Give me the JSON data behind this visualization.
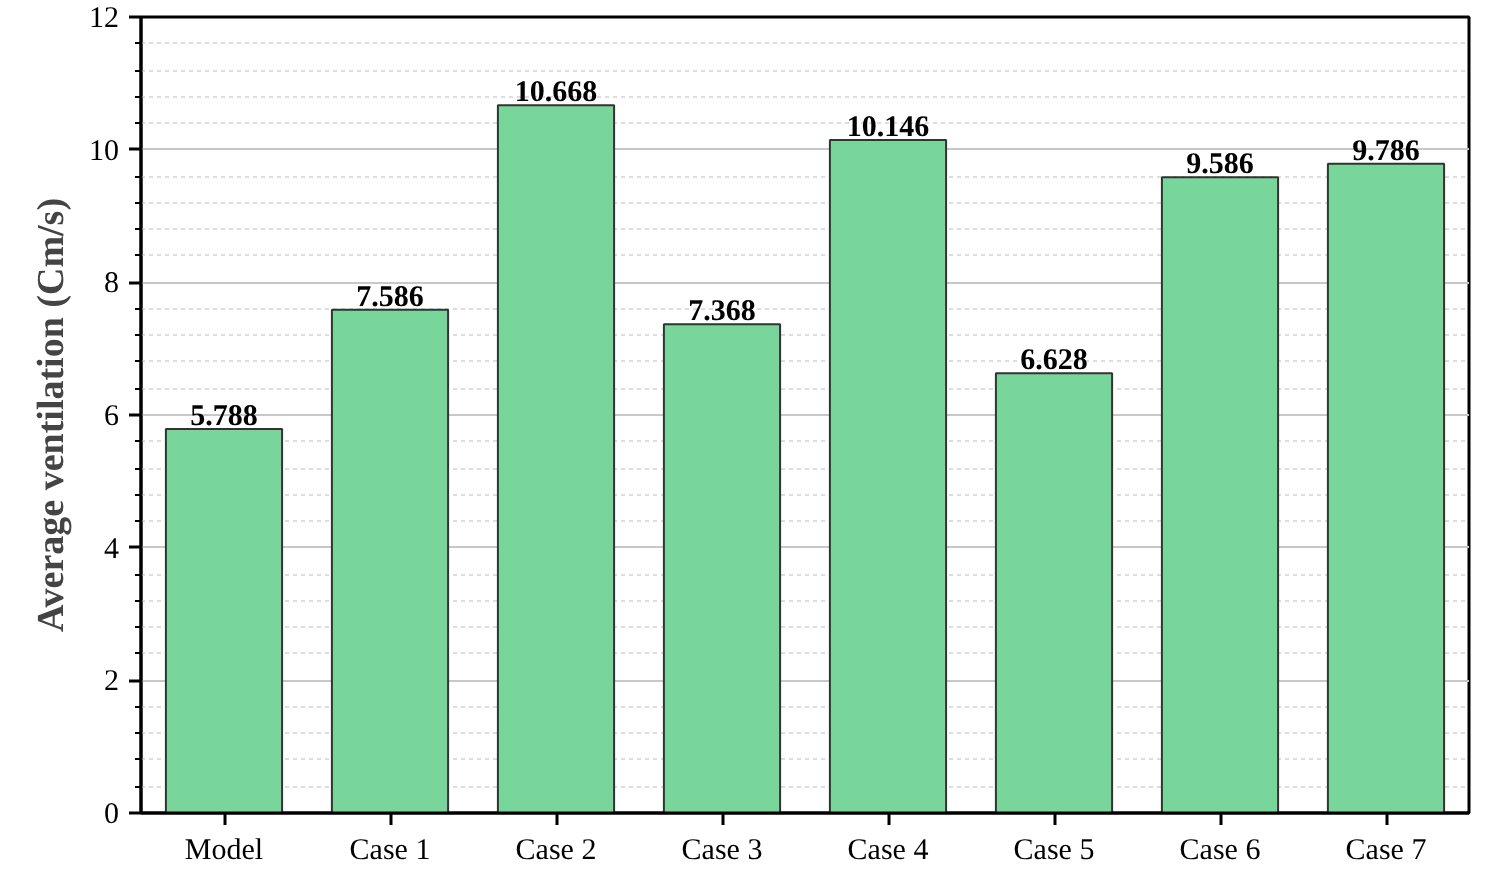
{
  "chart_data": {
    "type": "bar",
    "ylabel": "Average ventilation (Cm/s)",
    "categories": [
      "Model",
      "Case 1",
      "Case 2",
      "Case 3",
      "Case 4",
      "Case 5",
      "Case 6",
      "Case 7"
    ],
    "values": [
      5.788,
      7.586,
      10.668,
      7.368,
      10.146,
      6.628,
      9.586,
      9.786
    ],
    "color": "#79d69b",
    "data_labels": true,
    "grid": "y",
    "ylim": [
      0,
      12
    ],
    "yticks": [
      0,
      {
        "value": 0.4,
        "label": null
      },
      {
        "value": 0.8,
        "label": null
      },
      {
        "value": 1.2,
        "label": null
      },
      {
        "value": 1.6,
        "label": null
      },
      2,
      {
        "value": 2.4,
        "label": null
      },
      {
        "value": 2.8,
        "label": null
      },
      {
        "value": 3.2,
        "label": null
      },
      {
        "value": 3.6,
        "label": null
      },
      4,
      {
        "value": 4.4,
        "label": null
      },
      {
        "value": 4.8,
        "label": null
      },
      {
        "value": 5.2,
        "label": null
      },
      {
        "value": 5.6,
        "label": null
      },
      6,
      {
        "value": 6.4,
        "label": null
      },
      {
        "value": 6.8,
        "label": null
      },
      {
        "value": 7.2,
        "label": null
      },
      {
        "value": 7.6,
        "label": null
      },
      8,
      {
        "value": 8.4,
        "label": null
      },
      {
        "value": 8.8,
        "label": null
      },
      {
        "value": 9.2,
        "label": null
      },
      {
        "value": 9.6,
        "label": null
      },
      10,
      {
        "value": 10.4,
        "label": null
      },
      {
        "value": 10.8,
        "label": null
      },
      {
        "value": 11.2,
        "label": null
      },
      {
        "value": 11.6,
        "label": null
      },
      12
    ]
  }
}
